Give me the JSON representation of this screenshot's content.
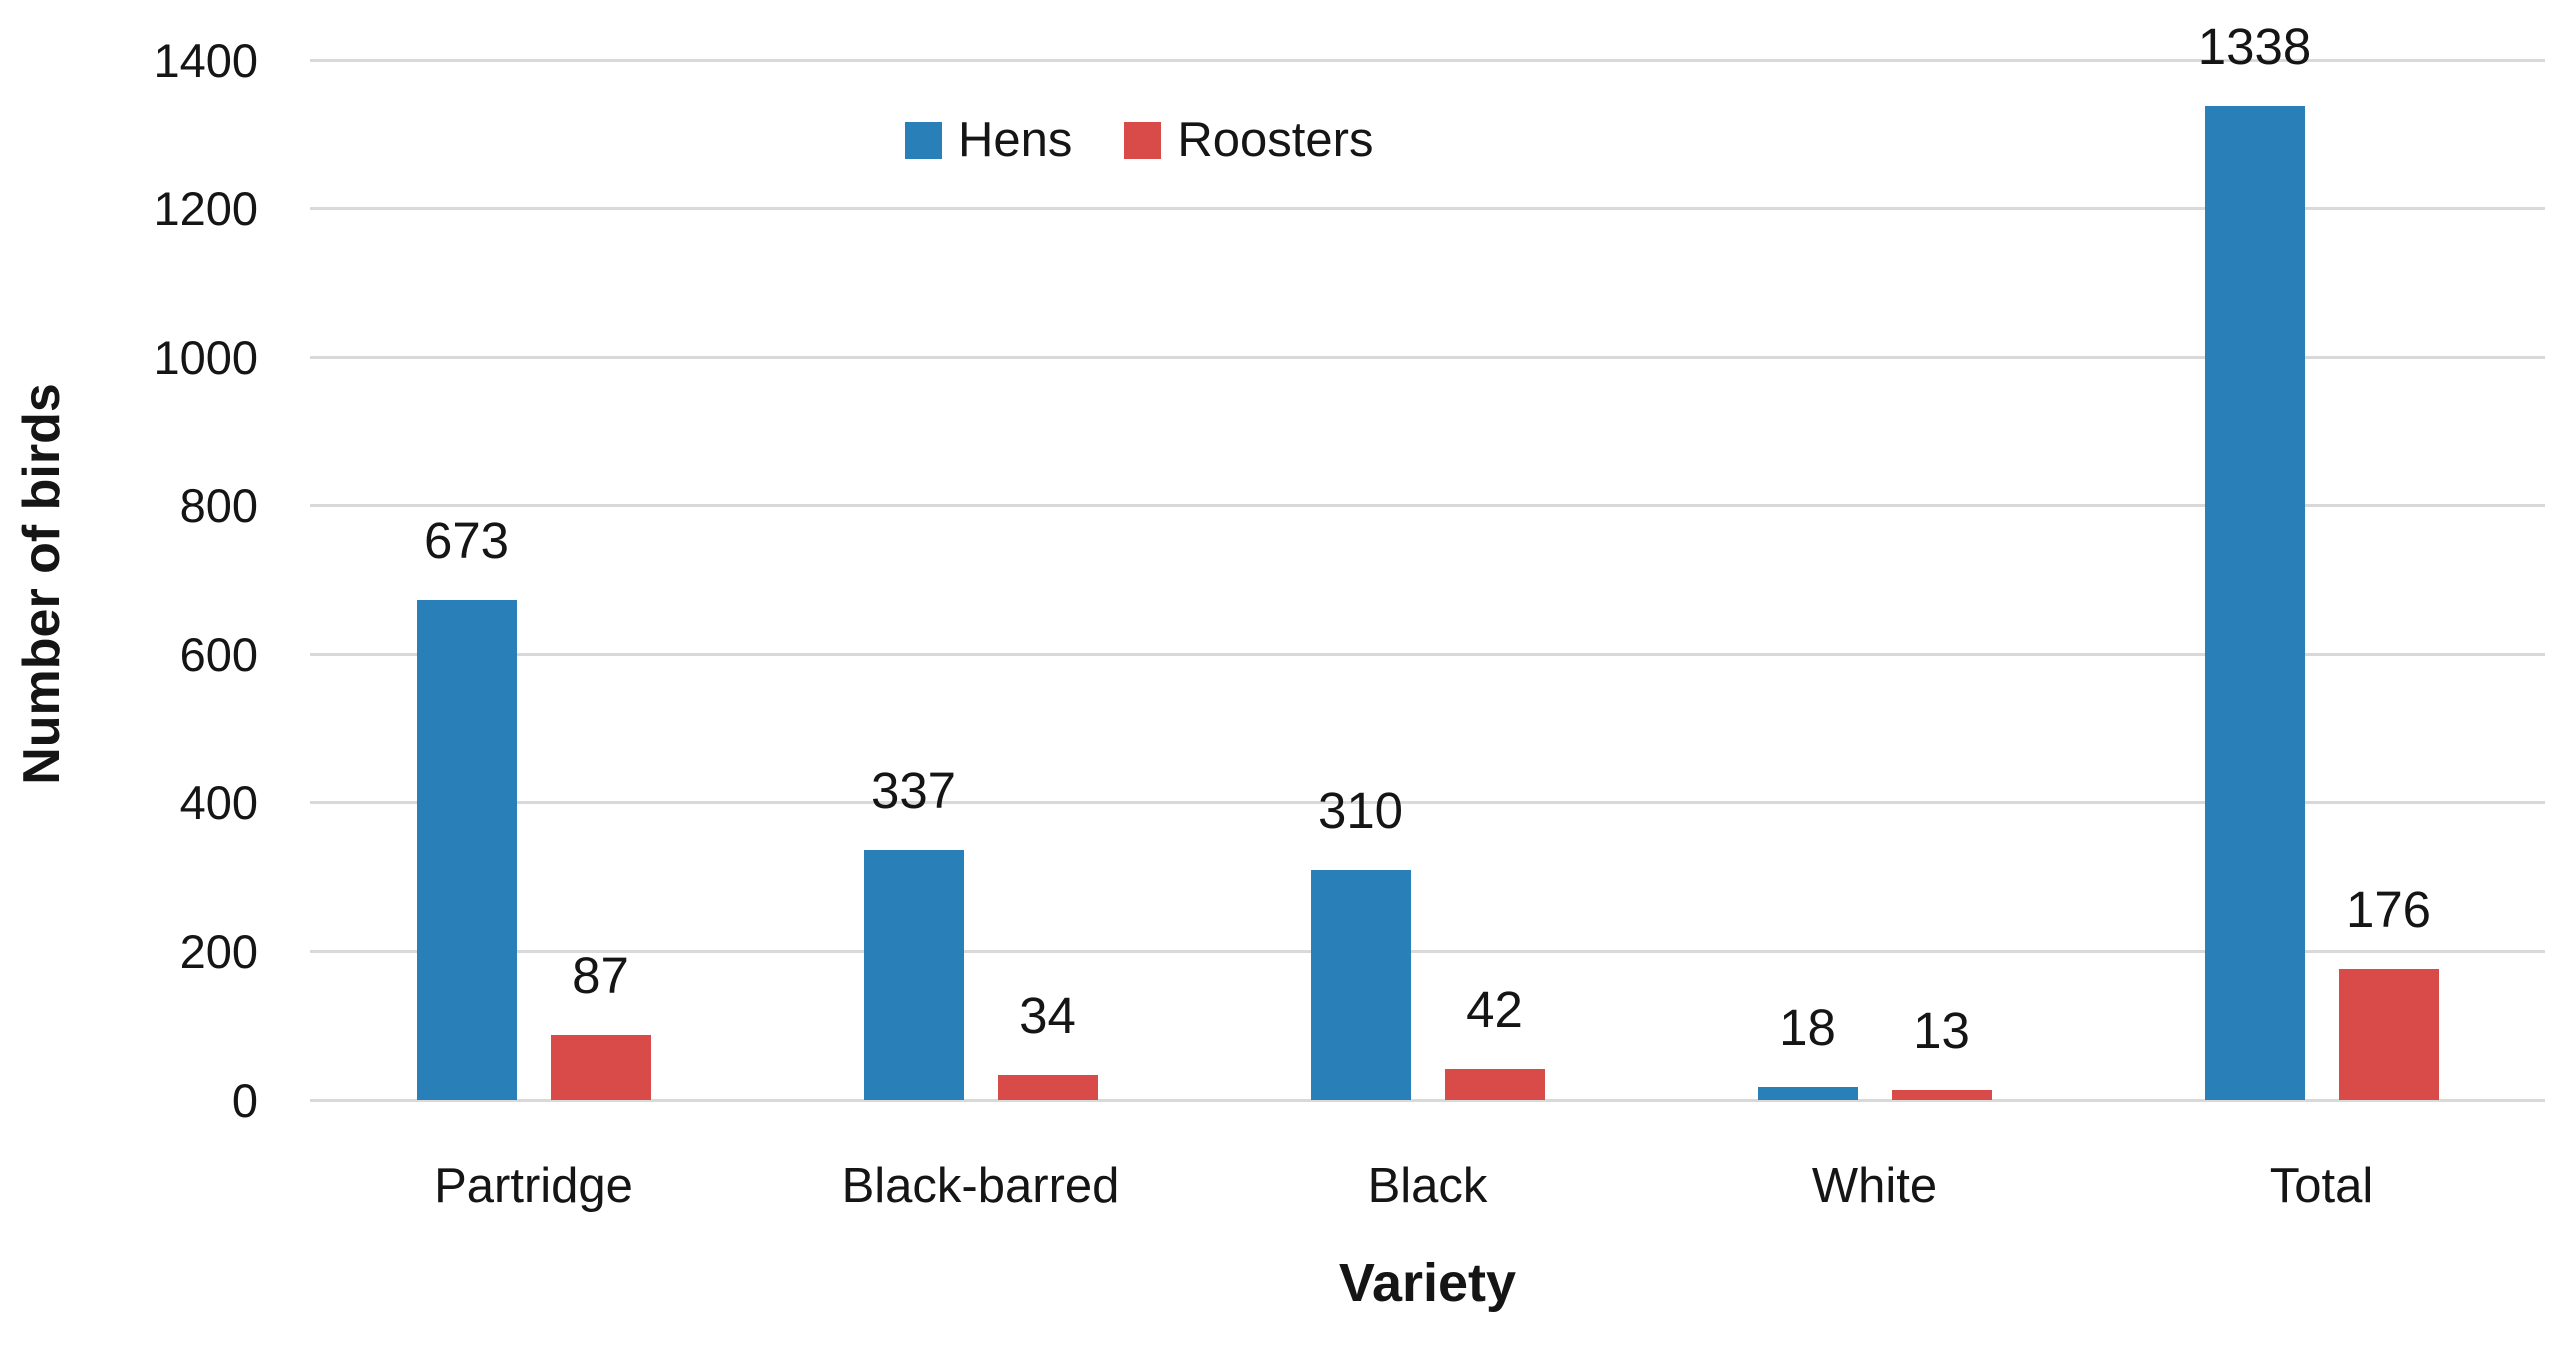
{
  "chart_data": {
    "type": "bar",
    "title": "",
    "categories": [
      "Partridge",
      "Black-barred",
      "Black",
      "White",
      "Total"
    ],
    "series": [
      {
        "name": "Hens",
        "color": "#2980b9",
        "values": [
          673,
          337,
          310,
          18,
          1338
        ]
      },
      {
        "name": "Roosters",
        "color": "#d84b48",
        "values": [
          87,
          34,
          42,
          13,
          176
        ]
      }
    ],
    "xlabel": "Variety",
    "ylabel": "Number of birds",
    "ylim": [
      0,
      1400
    ],
    "yticks": [
      0,
      200,
      400,
      600,
      800,
      1000,
      1200,
      1400
    ],
    "grid": true,
    "gridline_color": "#d9d9d9",
    "background": "#ffffff",
    "legend_position": "top-center",
    "data_labels": true
  }
}
